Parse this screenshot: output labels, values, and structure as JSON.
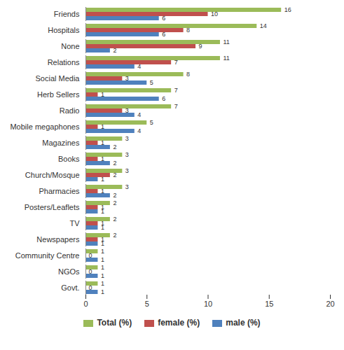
{
  "chart_data": {
    "type": "bar",
    "orientation": "horizontal",
    "data_labels": true,
    "legend": "bottom",
    "categories": [
      "Friends",
      "Hospitals",
      "None",
      "Relations",
      "Social Media",
      "Herb Sellers",
      "Radio",
      "Mobile megaphones",
      "Magazines",
      "Books",
      "Church/Mosque",
      "Pharmacies",
      "Posters/Leaflets",
      "TV",
      "Newspapers",
      "Community Centre",
      "NGOs",
      "Govt."
    ],
    "series": [
      {
        "name": "Total  (%)",
        "color": "#9bbb59",
        "values": [
          16,
          14,
          11,
          11,
          8,
          7,
          7,
          5,
          3,
          3,
          3,
          3,
          2,
          2,
          2,
          1,
          1,
          1
        ]
      },
      {
        "name": "female (%)",
        "color": "#c0504d",
        "values": [
          10,
          8,
          9,
          7,
          3,
          1,
          3,
          1,
          1,
          1,
          2,
          1,
          1,
          1,
          1,
          0,
          0,
          0
        ]
      },
      {
        "name": "male (%)",
        "color": "#4f81bd",
        "values": [
          6,
          6,
          2,
          4,
          5,
          6,
          4,
          4,
          2,
          2,
          1,
          2,
          1,
          1,
          1,
          1,
          1,
          1
        ]
      }
    ],
    "xlim": [
      0,
      20
    ],
    "xticks": [
      0,
      5,
      10,
      15,
      20
    ]
  }
}
